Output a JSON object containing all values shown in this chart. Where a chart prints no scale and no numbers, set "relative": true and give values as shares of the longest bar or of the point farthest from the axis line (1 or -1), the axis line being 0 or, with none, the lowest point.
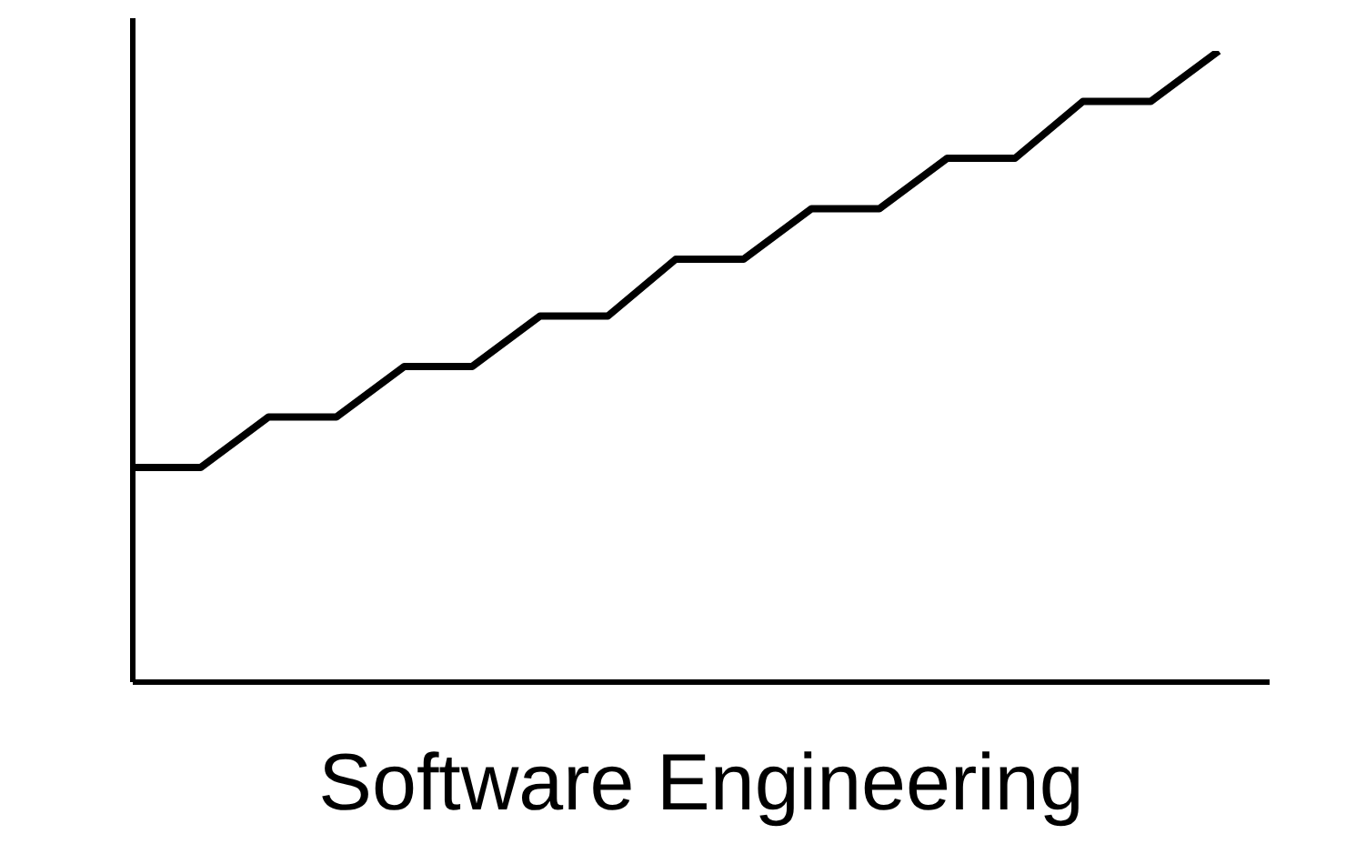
{
  "chart_data": {
    "type": "line",
    "relative": true,
    "xlabel": "Software Engineering",
    "categories": [
      null,
      null,
      null,
      null,
      null,
      null,
      null,
      null,
      null,
      null,
      null,
      null,
      null,
      null,
      null,
      null,
      null
    ],
    "series": [
      {
        "color": "#000000",
        "values": [
          0.34,
          0.34,
          0.42,
          0.42,
          0.5,
          0.5,
          0.58,
          0.58,
          0.67,
          0.67,
          0.75,
          0.75,
          0.83,
          0.83,
          0.92,
          0.92,
          1
        ]
      }
    ]
  }
}
